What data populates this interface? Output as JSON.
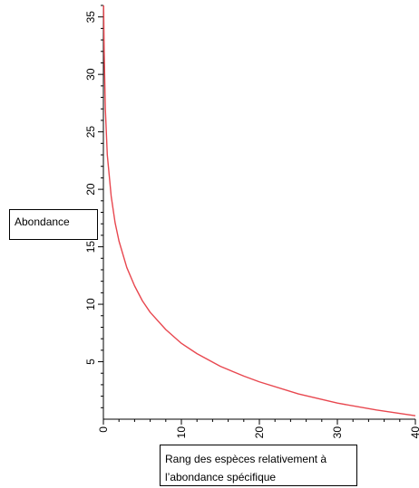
{
  "chart_data": {
    "type": "line",
    "title": "",
    "ylabel": "Abondance",
    "xlabel_line1": "Rang des espèces relativement à",
    "xlabel_line2": "l’abondance spécifique",
    "xlim": [
      0,
      40
    ],
    "ylim": [
      0,
      36
    ],
    "xticks": [
      "0",
      "10",
      "20",
      "30",
      "40"
    ],
    "yticks": [
      "5",
      "10",
      "15",
      "20",
      "25",
      "30",
      "35"
    ],
    "grid": false,
    "colors": {
      "line": "#e8474f",
      "axis": "#000000"
    },
    "series": [
      {
        "x": [
          0.03,
          0.1,
          0.25,
          0.5,
          1,
          1.5,
          2,
          3,
          4,
          5,
          6,
          8,
          10,
          12,
          15,
          18,
          20,
          25,
          30,
          35,
          40
        ],
        "values": [
          36,
          32,
          27,
          23,
          19.4,
          17.1,
          15.5,
          13.2,
          11.6,
          10.3,
          9.3,
          7.8,
          6.6,
          5.7,
          4.6,
          3.75,
          3.25,
          2.2,
          1.4,
          0.8,
          0.3
        ]
      }
    ]
  }
}
